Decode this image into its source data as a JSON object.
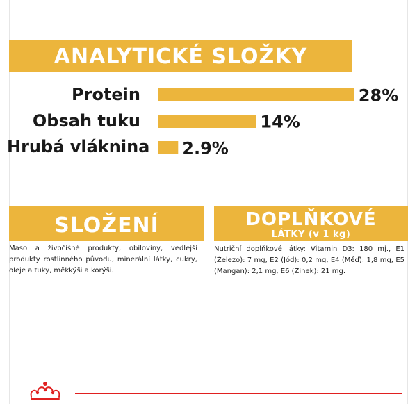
{
  "colors": {
    "accent": "#ecb53c",
    "bar": "#ecb53c",
    "brand_red": "#e02020",
    "text": "#1a1a1a"
  },
  "headers": {
    "analytical": "ANALYTICKÉ SLOŽKY",
    "composition": "SLOŽENÍ",
    "additives_line1": "DOPLŇKOVÉ",
    "additives_line2": "LÁTKY (v 1 kg)"
  },
  "chart_data": {
    "type": "bar",
    "orientation": "horizontal",
    "categories": [
      "Protein",
      "Obsah tuku",
      "Hrubá vláknina"
    ],
    "values": [
      28,
      14,
      2.9
    ],
    "value_labels": [
      "28%",
      "14%",
      "2.9%"
    ],
    "title": "ANALYTICKÉ SLOŽKY"
  },
  "composition_text": "Maso a živočišné produkty, obiloviny, vedlejší produkty rostlinného původu, minerální látky, cukry, oleje a tuky, měkkýši a korýši.",
  "additives_text": "Nutriční doplňkové látky: Vitamin D3: 180 mj., E1 (Železo): 7 mg, E2 (Jód): 0,2 mg, E4 (Měď): 1,8 mg, E5 (Mangan): 2,1 mg, E6 (Zinek): 21 mg.",
  "logo": {
    "icon": "crown-icon"
  }
}
